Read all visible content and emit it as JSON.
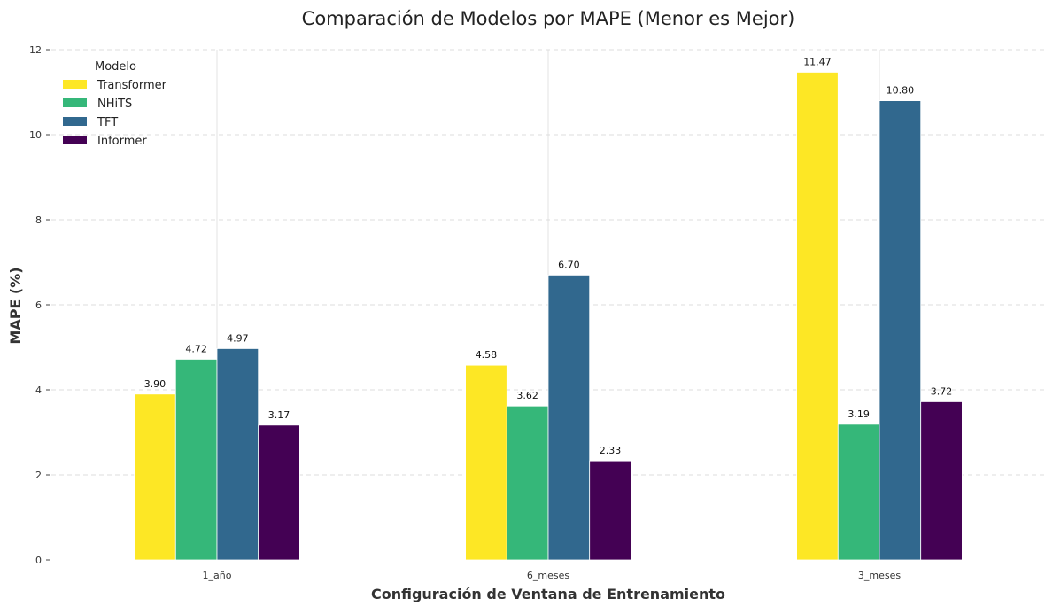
{
  "chart_data": {
    "type": "bar",
    "title": "Comparación de Modelos por MAPE (Menor es Mejor)",
    "xlabel": "Configuración de Ventana de Entrenamiento",
    "ylabel": "MAPE (%)",
    "categories": [
      "1_año",
      "6_meses",
      "3_meses"
    ],
    "series": [
      {
        "name": "Transformer",
        "color": "#fde725",
        "values": [
          3.9,
          4.58,
          11.47
        ],
        "labels": [
          "3.90",
          "4.58",
          "11.47"
        ]
      },
      {
        "name": "NHiTS",
        "color": "#35b779",
        "values": [
          4.72,
          3.62,
          3.19
        ],
        "labels": [
          "4.72",
          "3.62",
          "3.19"
        ]
      },
      {
        "name": "TFT",
        "color": "#31688e",
        "values": [
          4.97,
          6.7,
          10.8
        ],
        "labels": [
          "4.97",
          "6.70",
          "10.80"
        ]
      },
      {
        "name": "Informer",
        "color": "#440154",
        "values": [
          3.17,
          2.33,
          3.72
        ],
        "labels": [
          "3.17",
          "2.33",
          "3.72"
        ]
      }
    ],
    "ylim": [
      0,
      12
    ],
    "yticks": [
      0,
      2,
      4,
      6,
      8,
      10,
      12
    ],
    "ytick_labels": [
      "0",
      "2",
      "4",
      "6",
      "8",
      "10",
      "12"
    ],
    "legend": {
      "title": "Modelo",
      "position": "top-left"
    },
    "grid": "dashed horizontal"
  }
}
